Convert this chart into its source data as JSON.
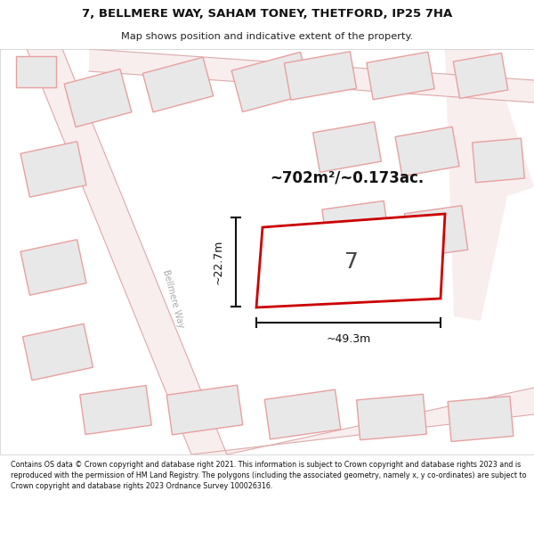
{
  "title": "7, BELLMERE WAY, SAHAM TONEY, THETFORD, IP25 7HA",
  "subtitle": "Map shows position and indicative extent of the property.",
  "area_label": "~702m²/~0.173ac.",
  "width_label": "~49.3m",
  "height_label": "~22.7m",
  "plot_number": "7",
  "street_label": "Bellmere Way",
  "footer": "Contains OS data © Crown copyright and database right 2021. This information is subject to Crown copyright and database rights 2023 and is reproduced with the permission of HM Land Registry. The polygons (including the associated geometry, namely x, y co-ordinates) are subject to Crown copyright and database rights 2023 Ordnance Survey 100026316.",
  "map_bg": "#ffffff",
  "plot7_color": "#cc0000",
  "road_fill": "#f0e0e0",
  "road_edge": "#e8b0b0",
  "bld_fill": "#e8e8e8",
  "bld_edge": "#e8a0a0",
  "header_bg": "#ffffff",
  "footer_bg": "#ffffff",
  "text_color": "#111111",
  "dim_color": "#111111",
  "street_color": "#aaaaaa"
}
